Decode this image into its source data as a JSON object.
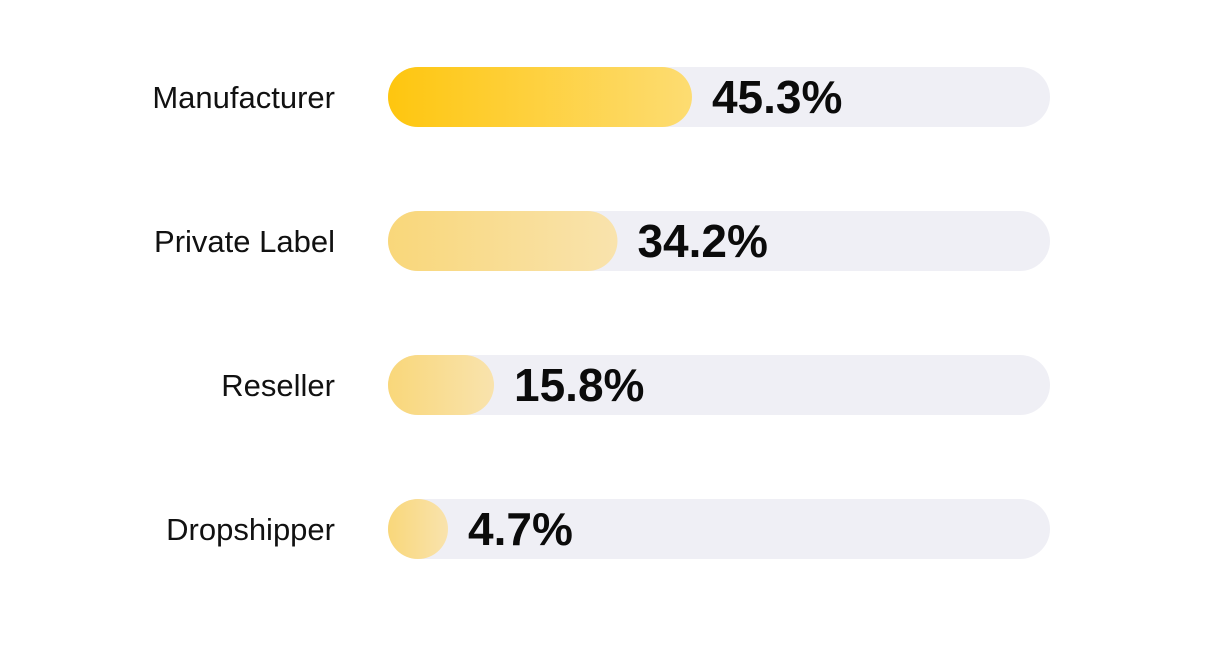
{
  "chart_data": {
    "type": "bar",
    "orientation": "horizontal",
    "categories": [
      "Manufacturer",
      "Private Label",
      "Reseller",
      "Dropshipper"
    ],
    "values": [
      45.3,
      34.2,
      15.8,
      4.7
    ],
    "value_labels": [
      "45.3%",
      "34.2%",
      "15.8%",
      "4.7%"
    ],
    "unit": "%",
    "xlim": [
      0,
      100
    ],
    "grid": false,
    "legend": "none",
    "colors": {
      "track": "#efeff5",
      "primary_start": "#fec60f",
      "primary_end": "#fddc72",
      "secondary_start": "#f9d77a",
      "secondary_end": "#f9e3ad"
    }
  }
}
